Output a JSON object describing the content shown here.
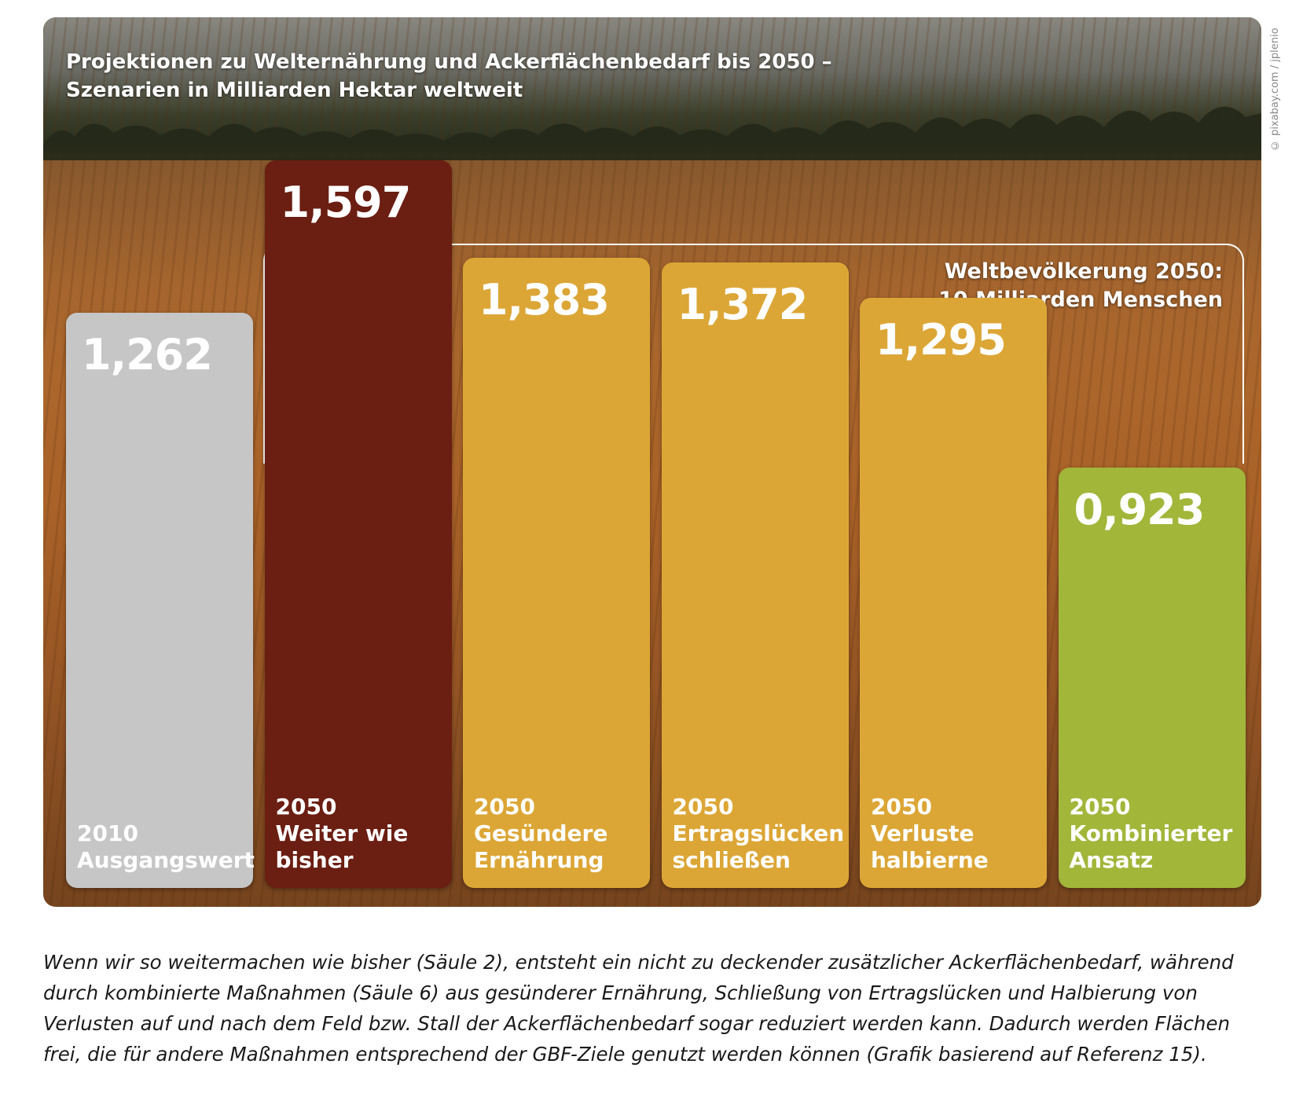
{
  "title_line1": "Projektionen zu Welternährung und Ackerflächenbedarf bis 2050 –",
  "title_line2": "Szenarien in Milliarden Hektar weltweit",
  "credit": "© pixabay.com / jplenio",
  "annotation": {
    "line1": "Weltbevölkerung 2050:",
    "line2": "10 Milliarden Menschen"
  },
  "caption": "Wenn wir so weitermachen wie bisher (Säule 2), entsteht ein nicht zu deckender zusätzlicher Ackerflächenbedarf, während durch kombinierte Maßnahmen (Säule 6) aus gesünderer Ernährung, Schließung von Ertragslücken und Halbierung von Verlusten auf und nach dem Feld bzw. Stall der Ackerflächenbedarf sogar reduziert werden kann. Dadurch werden Flächen frei, die für andere Maßnahmen entsprechend der GBF-Ziele genutzt werden können (Grafik basierend auf Referenz 15).",
  "chart_data": {
    "type": "bar",
    "title": "Projektionen zu Welternährung und Ackerflächenbedarf bis 2050 – Szenarien in Milliarden Hektar weltweit",
    "xlabel": "",
    "ylabel": "",
    "categories": [
      "2010\nAusgangswert",
      "2050\nWeiter wie\nbisher",
      "2050\nGesündere\nErnährung",
      "2050\nErtragslücken\nschließen",
      "2050\nVerluste\nhalbierne",
      "2050\nKombinierter\nAnsatz"
    ],
    "values": [
      1.262,
      1.597,
      1.383,
      1.372,
      1.295,
      0.923
    ],
    "value_labels": [
      "1,262",
      "1,597",
      "1,383",
      "1,372",
      "1,295",
      "0,923"
    ],
    "colors": [
      "#c6c6c6",
      "#6b1e12",
      "#dca636",
      "#dca636",
      "#dca636",
      "#a2b63a"
    ],
    "grid": false,
    "legend": "none"
  }
}
